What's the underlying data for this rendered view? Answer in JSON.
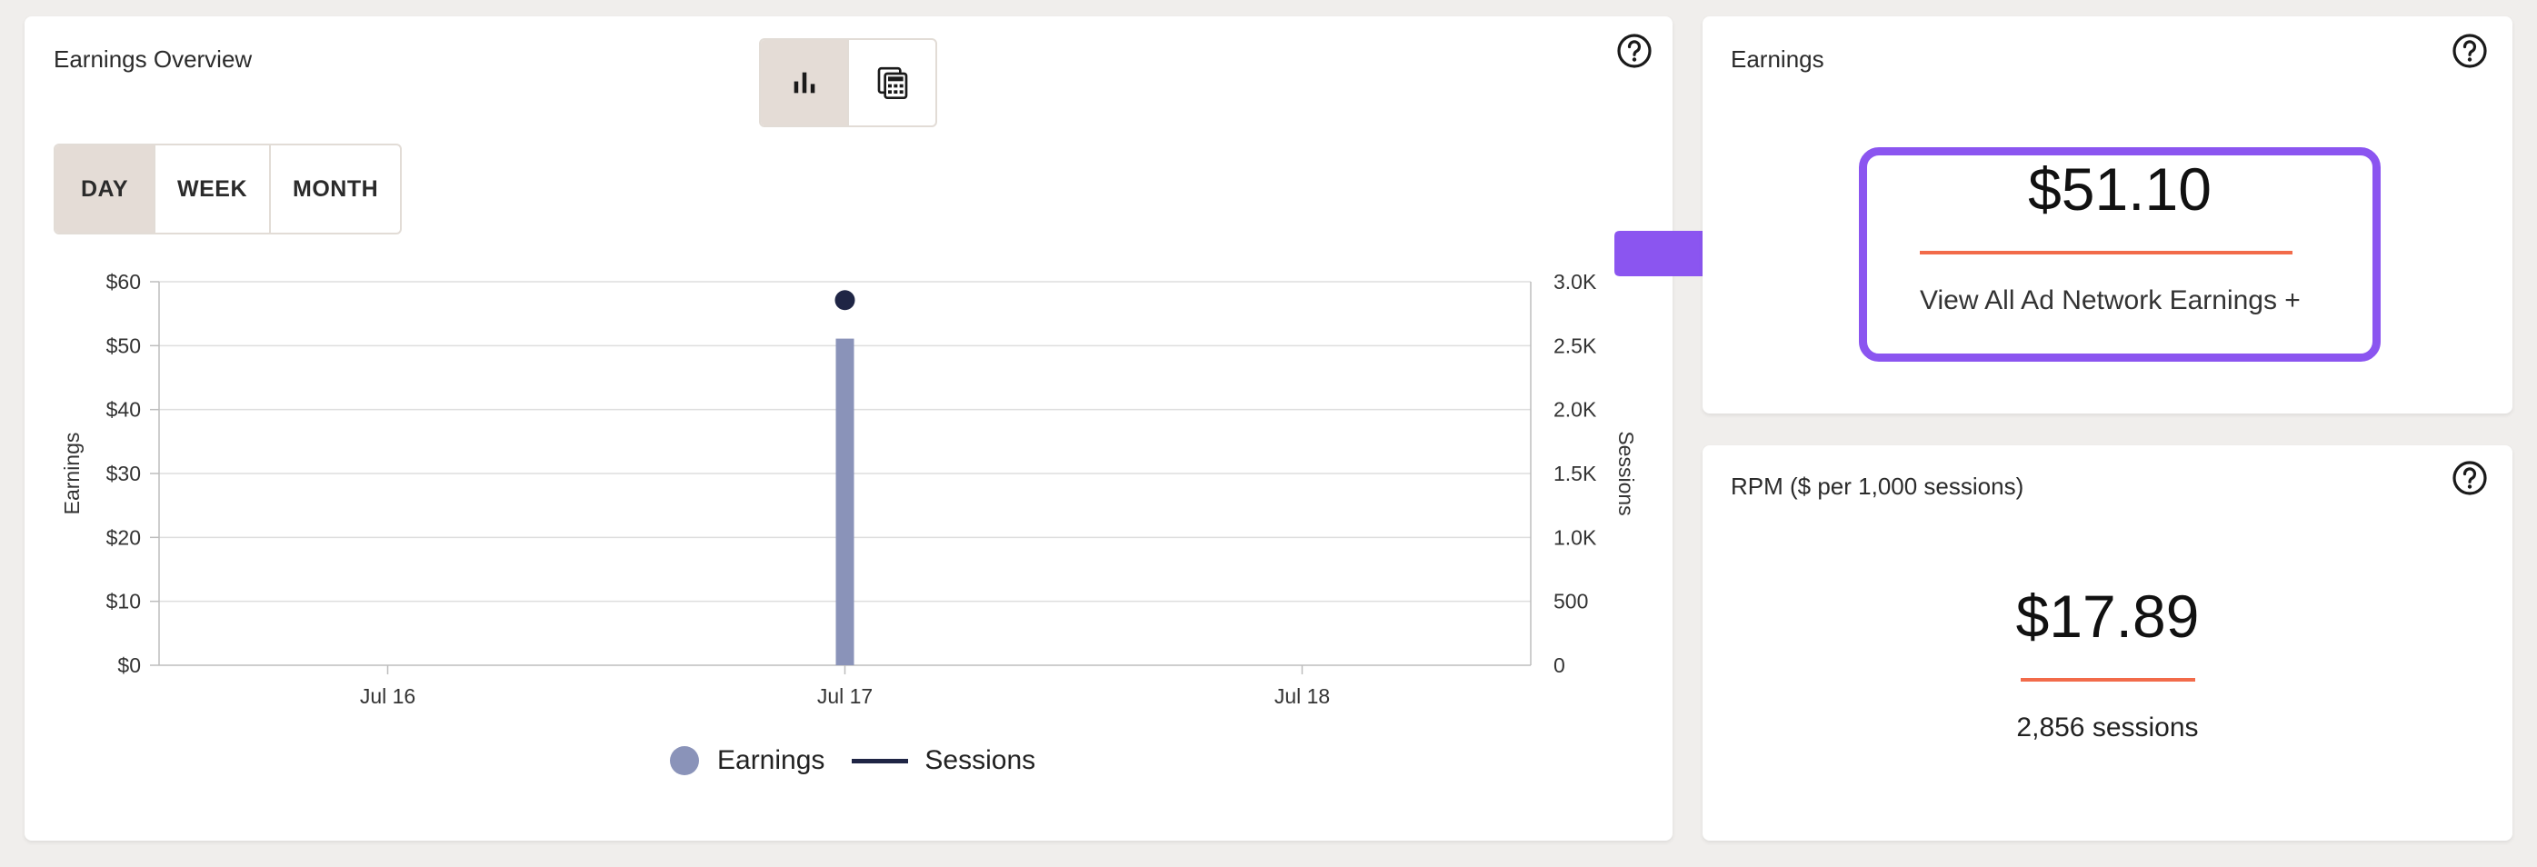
{
  "overview": {
    "title": "Earnings Overview",
    "view_toggle": [
      {
        "icon": "bar-chart-icon",
        "active": true
      },
      {
        "icon": "calculator-icon",
        "active": false
      }
    ],
    "periods": [
      {
        "label": "DAY",
        "active": true
      },
      {
        "label": "WEEK",
        "active": false
      },
      {
        "label": "MONTH",
        "active": false
      }
    ],
    "legend": {
      "earnings": "Earnings",
      "sessions": "Sessions"
    }
  },
  "chart_data": {
    "type": "bar",
    "categories": [
      "Jul 16",
      "Jul 17",
      "Jul 18"
    ],
    "series": [
      {
        "name": "Earnings",
        "kind": "bar",
        "axis": "left",
        "values": [
          0,
          51.1,
          0
        ],
        "color": "#8a93b9"
      },
      {
        "name": "Sessions",
        "kind": "line",
        "axis": "right",
        "values": [
          null,
          2856,
          null
        ],
        "color": "#1f2545"
      }
    ],
    "ylabel": "Earnings",
    "y2label": "Sessions",
    "ylim": [
      0,
      60
    ],
    "y2lim": [
      0,
      3000
    ],
    "yticks": [
      "$0",
      "$10",
      "$20",
      "$30",
      "$40",
      "$50",
      "$60"
    ],
    "y2ticks": [
      "0",
      "500",
      "1.0K",
      "1.5K",
      "2.0K",
      "2.5K",
      "3.0K"
    ],
    "grid": true,
    "legend_position": "bottom-center"
  },
  "earnings": {
    "title": "Earnings",
    "value": "$51.10",
    "link": "View All Ad Network Earnings +"
  },
  "rpm": {
    "title": "RPM ($ per 1,000 sessions)",
    "value": "$17.89",
    "sessions": "2,856 sessions"
  },
  "colors": {
    "accent_purple": "#8b55f0",
    "accent_orange": "#f26b4a",
    "earnings_bar": "#8a93b9",
    "sessions_line": "#1f2545"
  }
}
